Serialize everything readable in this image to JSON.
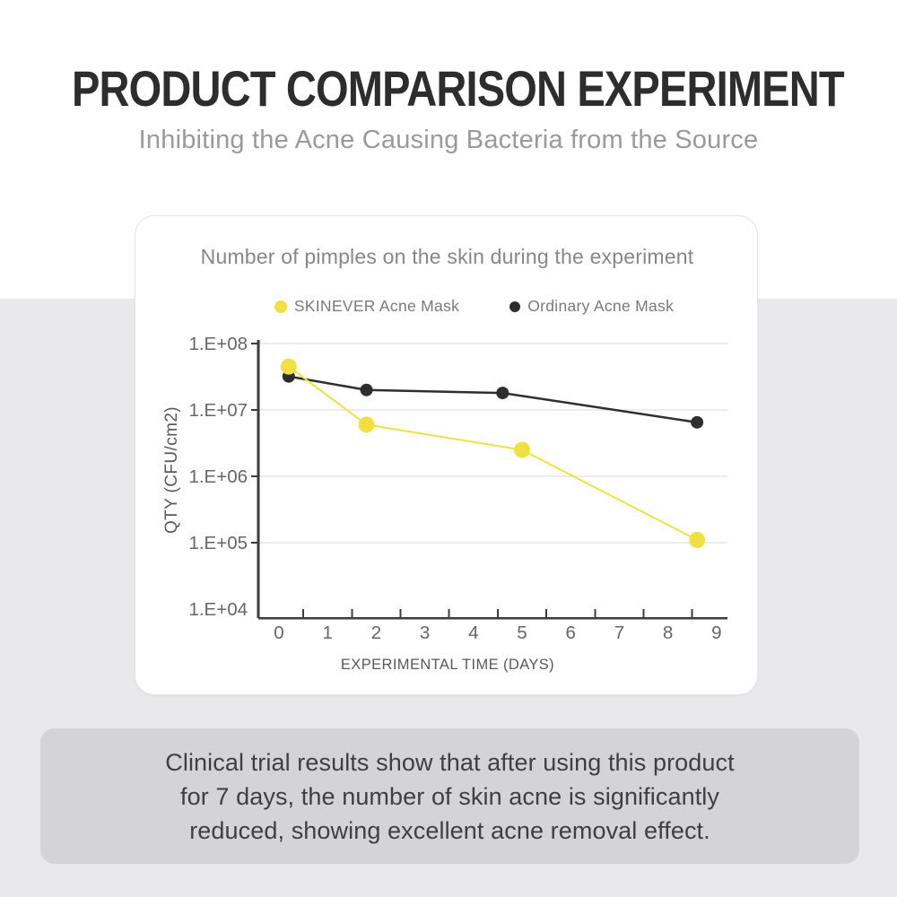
{
  "header": {
    "title": "PRODUCT COMPARISON EXPERIMENT",
    "subtitle": "Inhibiting the Acne Causing Bacteria from the Source"
  },
  "chart_data": {
    "type": "line",
    "title": "Number of pimples on the skin during the experiment",
    "xlabel": "EXPERIMENTAL TIME (DAYS)",
    "ylabel": "QTY (CFU/cm2)",
    "y_scale": "log",
    "ylim": [
      10000,
      100000000
    ],
    "xlim": [
      0,
      9
    ],
    "x_ticks": [
      0,
      1,
      2,
      3,
      4,
      5,
      6,
      7,
      8,
      9
    ],
    "y_tick_labels": [
      "1.E+08",
      "1.E+07",
      "1.E+06",
      "1.E+05",
      "1.E+04"
    ],
    "grid": true,
    "legend_position": "top",
    "series": [
      {
        "name": "SKINEVER Acne Mask",
        "color": "#f2df42",
        "marker_size": 9,
        "x": [
          0.2,
          1.8,
          5.0,
          8.6
        ],
        "values": [
          45000000.0,
          6000000.0,
          2500000.0,
          110000.0
        ]
      },
      {
        "name": "Ordinary Acne Mask",
        "color": "#2e2e2e",
        "marker_size": 7,
        "x": [
          0.2,
          1.8,
          4.6,
          8.6
        ],
        "values": [
          32000000.0,
          20000000.0,
          18000000.0,
          6500000.0
        ]
      }
    ]
  },
  "footer": {
    "lines": [
      "Clinical trial results show that after using this product",
      "for 7 days, the number of skin acne is significantly",
      "reduced, showing excellent acne removal effect."
    ]
  },
  "colors": {
    "background_lower": "#e9e9eb",
    "card_background": "#ffffff",
    "footer_background": "#d4d4d6",
    "axis": "#3c3c3c",
    "gridline": "#d8d8d8",
    "series_yellow": "#f2df42",
    "series_black": "#2e2e2e"
  }
}
